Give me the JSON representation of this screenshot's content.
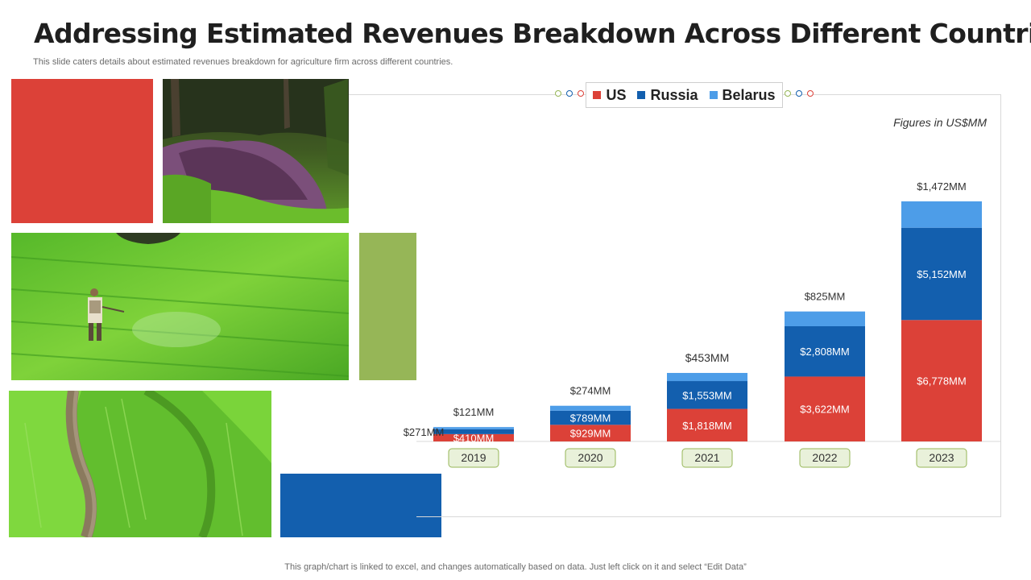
{
  "slide": {
    "title": "Addressing Estimated Revenues Breakdown Across Different Countries",
    "subtitle": "This slide caters details about estimated revenues breakdown for agriculture firm across different countries.",
    "footer": "This graph/chart is linked to excel, and changes automatically based on data. Just left click on it and select “Edit Data”",
    "figures_note": "Figures in US$MM"
  },
  "colors": {
    "red_block": "#dc4138",
    "green_block": "#96b657",
    "blue_block": "#135fae",
    "us": "#dc4138",
    "russia": "#135fae",
    "belarus": "#4d9de8",
    "year_box_fill": "#e9f1da",
    "year_box_border": "#96b657"
  },
  "chart_data": {
    "type": "bar",
    "stacked": true,
    "title": "",
    "xlabel": "",
    "ylabel": "",
    "unit_note": "Figures in US$MM",
    "categories": [
      "2019",
      "2020",
      "2021",
      "2022",
      "2023"
    ],
    "series": [
      {
        "name": "US",
        "color": "#dc4138",
        "values": [
          410,
          929,
          1818,
          3622,
          6778
        ],
        "labels": [
          "$410MM",
          "$929MM",
          "$1,818MM",
          "$3,622MM",
          "$6,778MM"
        ]
      },
      {
        "name": "Russia",
        "color": "#135fae",
        "values": [
          271,
          789,
          1553,
          2808,
          5152
        ],
        "labels": [
          "$271MM",
          "$789MM",
          "$1,553MM",
          "$2,808MM",
          "$5,152MM"
        ]
      },
      {
        "name": "Belarus",
        "color": "#4d9de8",
        "values": [
          121,
          274,
          453,
          825,
          1472
        ],
        "labels": [
          "$121MM",
          "$274MM",
          "$453MM",
          "$825MM",
          "$1,472MM"
        ]
      }
    ],
    "ylim": [
      0,
      13400
    ],
    "legend": "top-center",
    "grid": false
  }
}
